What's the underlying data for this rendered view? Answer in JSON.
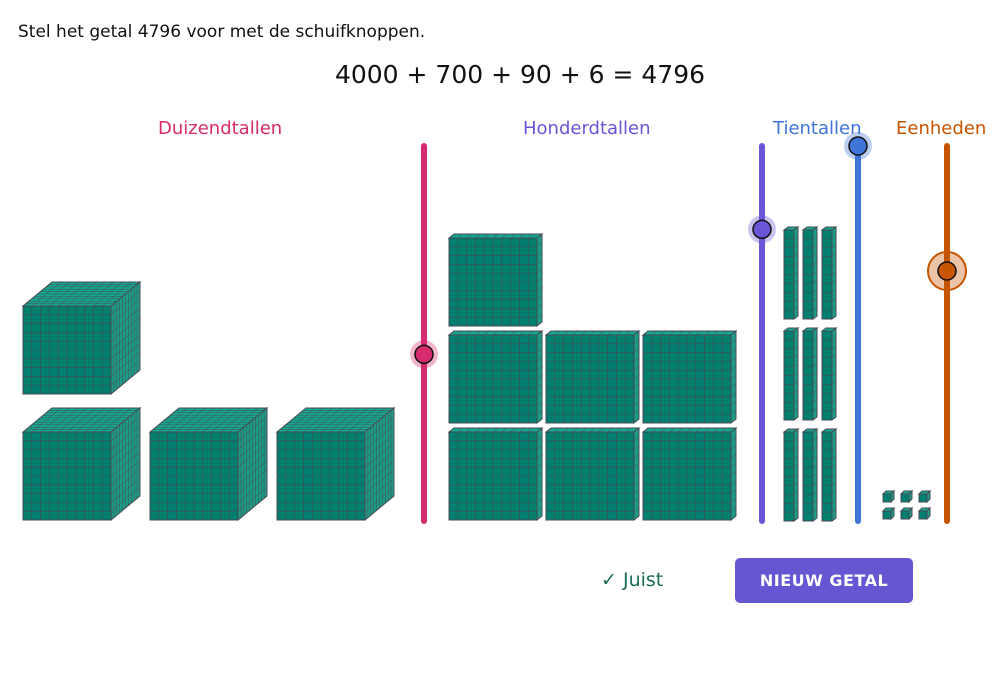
{
  "prompt": "Stel het getal 4796 voor met de schuifknoppen.",
  "equation": "4000 + 700 + 90 + 6 = 4796",
  "sliders": [
    {
      "label": "Duizendtallen",
      "value": 4,
      "min": 0,
      "max": 9,
      "color": "#d62b6c"
    },
    {
      "label": "Honderdtallen",
      "value": 7,
      "min": 0,
      "max": 9,
      "color": "#6a55d6"
    },
    {
      "label": "Tientallen",
      "value": 9,
      "min": 0,
      "max": 9,
      "color": "#3f74d8"
    },
    {
      "label": "Eenheden",
      "value": 6,
      "min": 0,
      "max": 9,
      "color": "#c65400"
    }
  ],
  "block_color": "#007f6e",
  "status": "✓ Juist",
  "button_label": "NIEUW GETAL"
}
